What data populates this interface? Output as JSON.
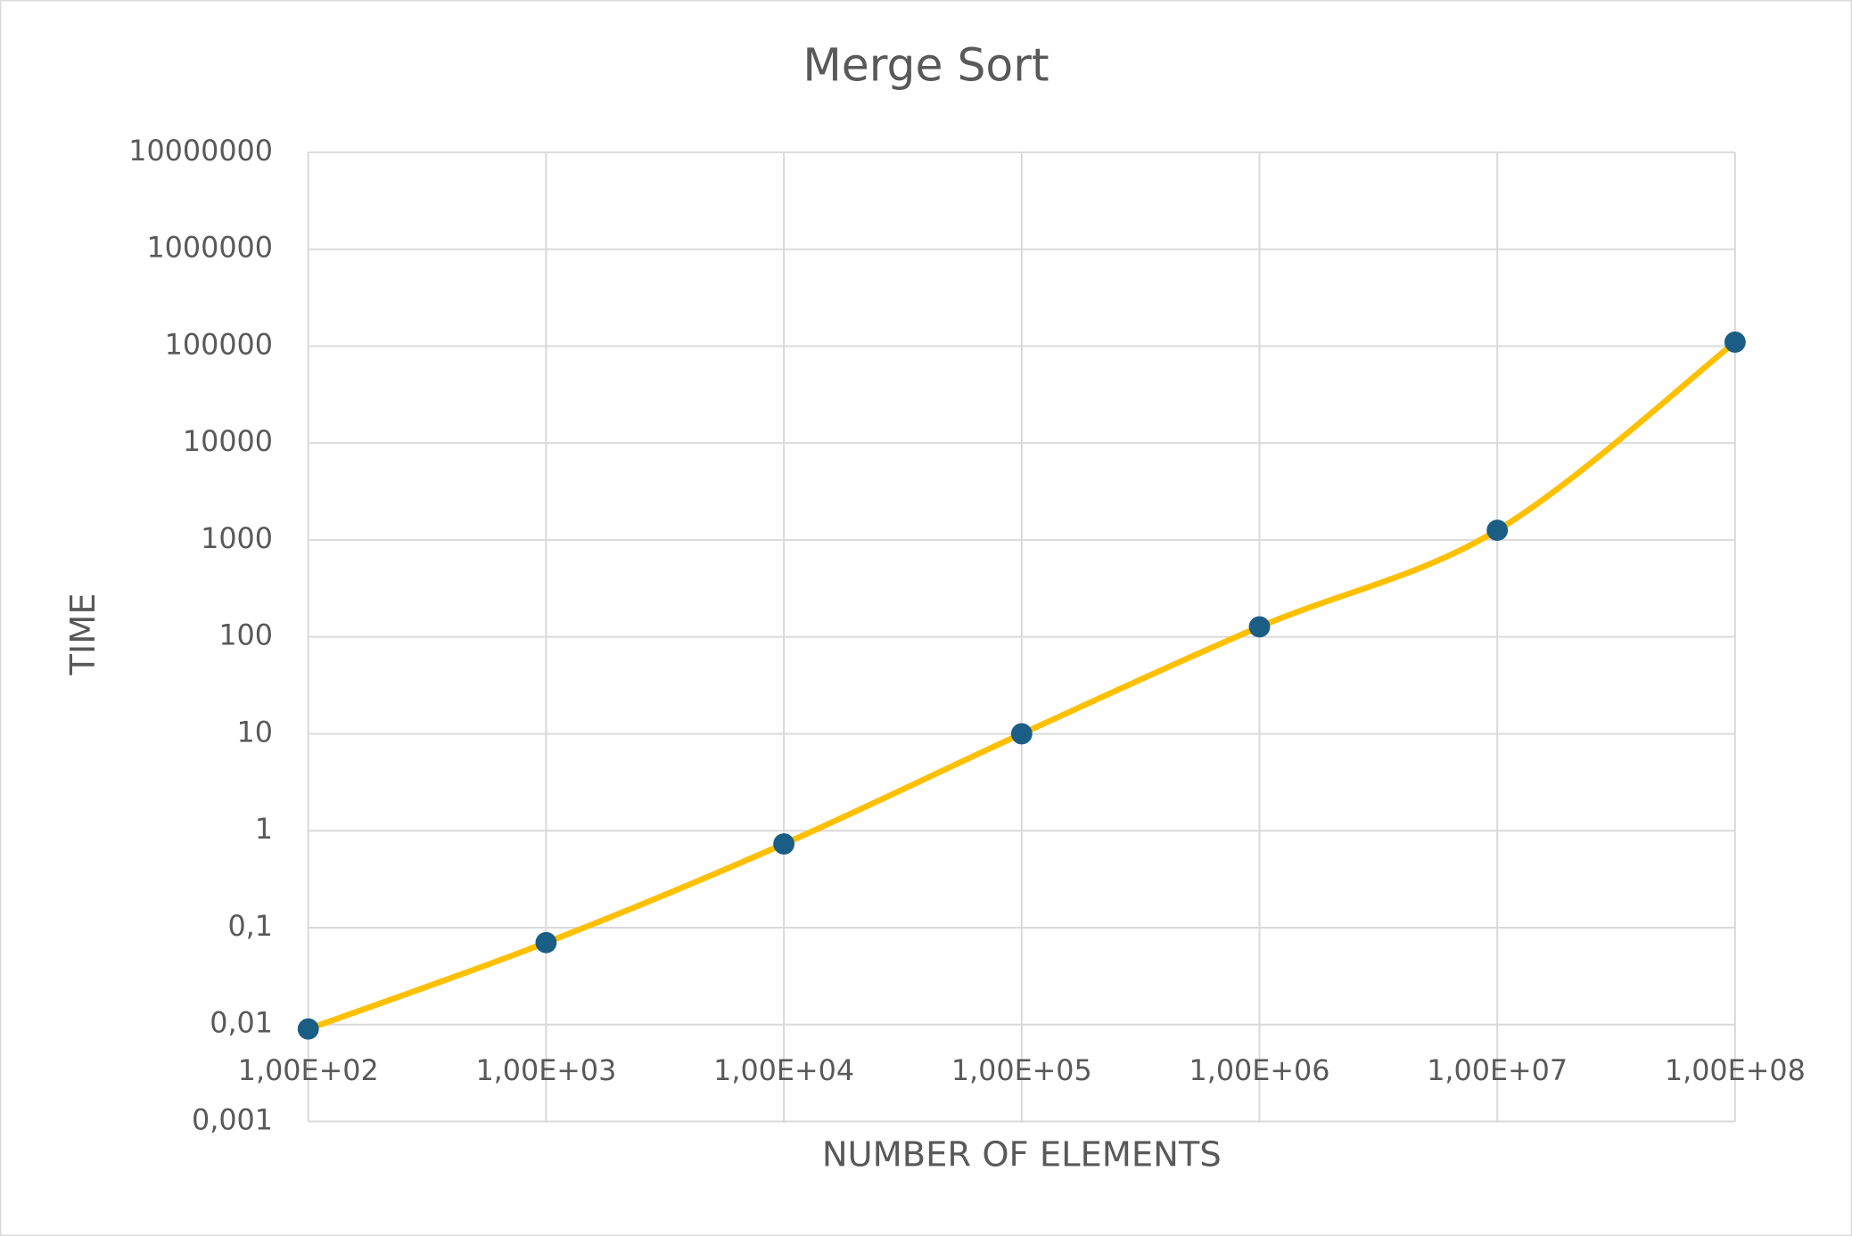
{
  "chart_data": {
    "type": "line",
    "title": "Merge Sort",
    "x_label": "NUMBER OF ELEMENTS",
    "y_label": "TIME",
    "x": [
      100,
      1000,
      10000,
      100000,
      1000000,
      10000000,
      100000000
    ],
    "values": [
      0.009,
      0.07,
      0.73,
      10,
      127,
      1260,
      110000
    ],
    "color": "#ffc000",
    "marker_color": "#1b5e85",
    "xlog": true,
    "ylog": true,
    "smooth": true,
    "grid": true,
    "xlim": [
      100,
      100000000
    ],
    "xticks": [
      {
        "value": 100,
        "label": "1,00E+02"
      },
      {
        "value": 1000,
        "label": "1,00E+03"
      },
      {
        "value": 10000,
        "label": "1,00E+04"
      },
      {
        "value": 100000,
        "label": "1,00E+05"
      },
      {
        "value": 1000000,
        "label": "1,00E+06"
      },
      {
        "value": 10000000,
        "label": "1,00E+07"
      },
      {
        "value": 100000000,
        "label": "1,00E+08"
      }
    ],
    "ylim": [
      0.001,
      10000000
    ],
    "yticks": [
      {
        "value": 0.001,
        "label": "0,001"
      },
      {
        "value": 0.01,
        "label": "0,01"
      },
      {
        "value": 0.1,
        "label": "0,1"
      },
      1,
      10,
      100,
      1000,
      10000,
      100000,
      1000000,
      10000000
    ]
  }
}
